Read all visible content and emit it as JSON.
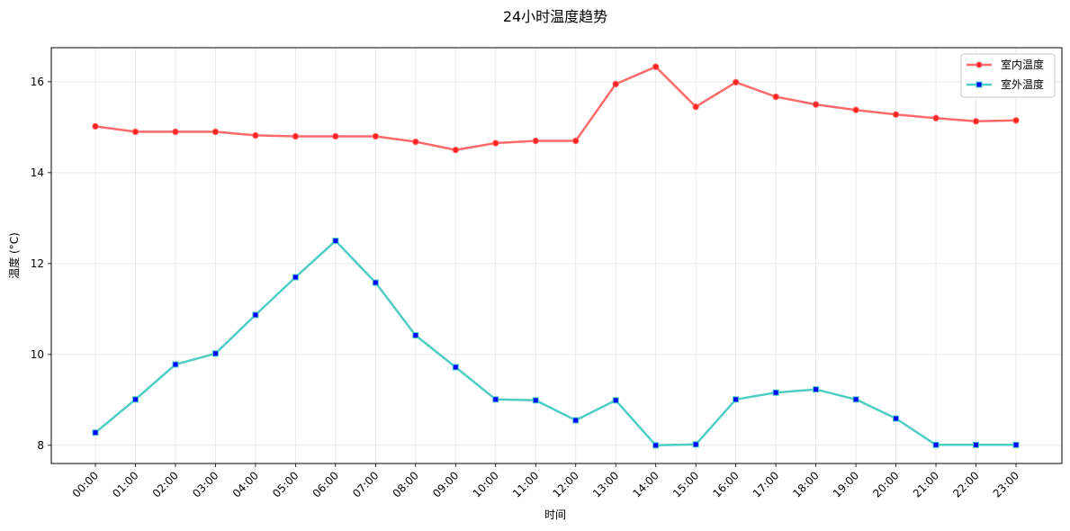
{
  "chart_data": {
    "type": "line",
    "title": "24小时温度趋势",
    "xlabel": "时间",
    "ylabel": "温度 (°C)",
    "categories": [
      "00:00",
      "01:00",
      "02:00",
      "03:00",
      "04:00",
      "05:00",
      "06:00",
      "07:00",
      "08:00",
      "09:00",
      "10:00",
      "11:00",
      "12:00",
      "13:00",
      "14:00",
      "15:00",
      "16:00",
      "17:00",
      "18:00",
      "19:00",
      "20:00",
      "21:00",
      "22:00",
      "23:00"
    ],
    "ylim": [
      7.6,
      16.75
    ],
    "yticks": [
      8,
      10,
      12,
      14,
      16
    ],
    "grid": true,
    "legend_position": "top-right",
    "series": [
      {
        "name": "室内温度",
        "color": "#ff6b6b",
        "marker": "circle",
        "marker_color": "#ff2222",
        "values": [
          15.02,
          14.9,
          14.9,
          14.9,
          14.82,
          14.8,
          14.8,
          14.8,
          14.68,
          14.5,
          14.65,
          14.7,
          14.7,
          15.95,
          16.33,
          15.45,
          15.99,
          15.67,
          15.5,
          15.38,
          15.28,
          15.2,
          15.13,
          15.15
        ]
      },
      {
        "name": "室外温度",
        "color": "#4ecdc4",
        "marker": "square",
        "marker_color": "#0000ff",
        "values": [
          8.28,
          9.01,
          9.78,
          10.02,
          10.87,
          11.7,
          12.5,
          11.58,
          10.42,
          9.72,
          9.01,
          8.99,
          8.55,
          8.99,
          8.0,
          8.02,
          9.01,
          9.16,
          9.23,
          9.01,
          8.59,
          8.01,
          8.01,
          8.01
        ]
      }
    ]
  }
}
